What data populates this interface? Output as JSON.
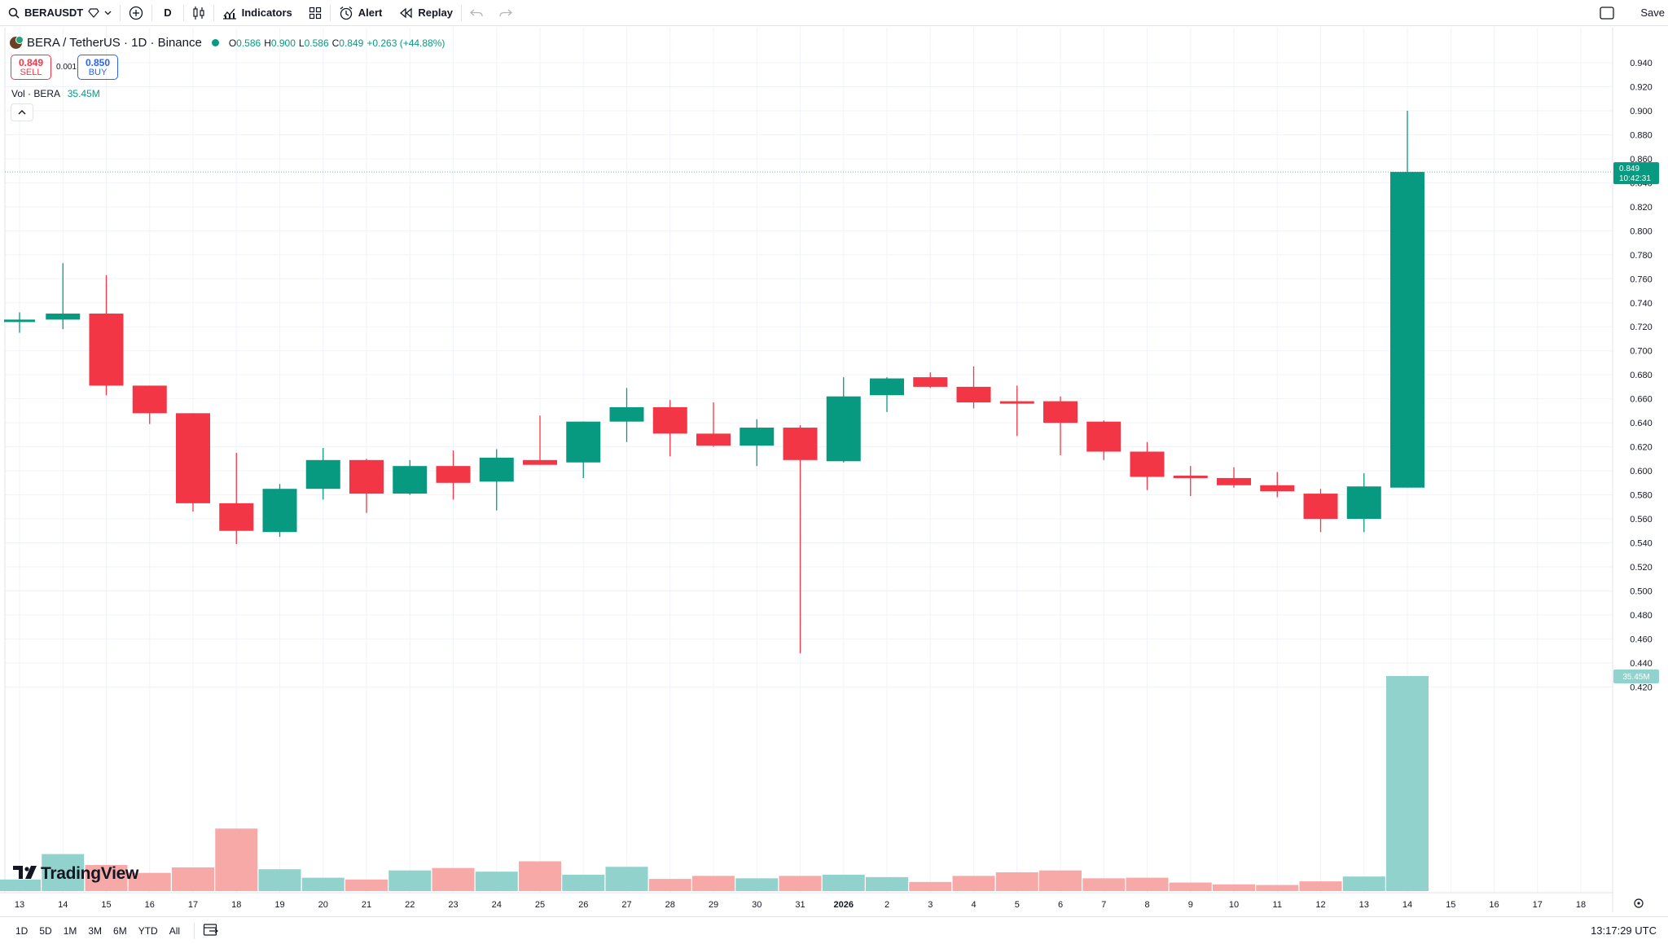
{
  "toolbar": {
    "symbol": "BERAUSDT",
    "interval": "D",
    "indicators_label": "Indicators",
    "alert_label": "Alert",
    "replay_label": "Replay",
    "save_label": "Save"
  },
  "legend": {
    "pair": "BERA / TetherUS · 1D · Binance",
    "o_label": "O",
    "o_value": "0.586",
    "h_label": "H",
    "h_value": "0.900",
    "l_label": "L",
    "l_value": "0.586",
    "c_label": "C",
    "c_value": "0.849",
    "change": "+0.263 (+44.88%)"
  },
  "trade": {
    "sell_price": "0.849",
    "sell_label": "SELL",
    "spread": "0.001",
    "buy_price": "0.850",
    "buy_label": "BUY"
  },
  "volume_legend": {
    "label": "Vol · BERA",
    "value": "35.45M"
  },
  "price_tag": {
    "price": "0.849",
    "countdown": "10:42:31"
  },
  "volume_tag": "35.45M",
  "brand": "TradingView",
  "bottom": {
    "ranges": [
      "1D",
      "5D",
      "1M",
      "3M",
      "6M",
      "YTD",
      "All"
    ],
    "utc_time": "13:17:29 UTC"
  },
  "colors": {
    "up": "#089981",
    "down": "#f23645",
    "vol_up": "#92d2cc",
    "vol_down": "#f7a9a7",
    "grid": "#f0f3fa"
  },
  "chart_data": {
    "type": "candlestick",
    "y_ticks": [
      "0.420",
      "0.440",
      "0.460",
      "0.480",
      "0.500",
      "0.520",
      "0.540",
      "0.560",
      "0.580",
      "0.600",
      "0.620",
      "0.640",
      "0.660",
      "0.680",
      "0.700",
      "0.720",
      "0.740",
      "0.760",
      "0.780",
      "0.800",
      "0.820",
      "0.840",
      "0.860",
      "0.880",
      "0.900",
      "0.920",
      "0.940"
    ],
    "x_labels": [
      "13",
      "14",
      "15",
      "16",
      "17",
      "18",
      "19",
      "20",
      "21",
      "22",
      "23",
      "24",
      "25",
      "26",
      "27",
      "28",
      "29",
      "30",
      "31",
      "2026",
      "2",
      "3",
      "4",
      "5",
      "6",
      "7",
      "8",
      "9",
      "10",
      "11",
      "12",
      "13",
      "14",
      "15",
      "16",
      "17",
      "18"
    ],
    "ylim": [
      0.406,
      0.95
    ],
    "candles": [
      {
        "x": "13",
        "o": 0.725,
        "h": 0.732,
        "l": 0.715,
        "c": 0.726
      },
      {
        "x": "14",
        "o": 0.726,
        "h": 0.773,
        "l": 0.718,
        "c": 0.731
      },
      {
        "x": "15",
        "o": 0.731,
        "h": 0.763,
        "l": 0.663,
        "c": 0.671
      },
      {
        "x": "16",
        "o": 0.671,
        "h": 0.671,
        "l": 0.639,
        "c": 0.648
      },
      {
        "x": "17",
        "o": 0.648,
        "h": 0.648,
        "l": 0.566,
        "c": 0.573
      },
      {
        "x": "18",
        "o": 0.573,
        "h": 0.615,
        "l": 0.539,
        "c": 0.55
      },
      {
        "x": "19",
        "o": 0.549,
        "h": 0.589,
        "l": 0.545,
        "c": 0.585
      },
      {
        "x": "20",
        "o": 0.585,
        "h": 0.619,
        "l": 0.576,
        "c": 0.609
      },
      {
        "x": "21",
        "o": 0.609,
        "h": 0.61,
        "l": 0.565,
        "c": 0.581
      },
      {
        "x": "22",
        "o": 0.581,
        "h": 0.609,
        "l": 0.58,
        "c": 0.604
      },
      {
        "x": "23",
        "o": 0.604,
        "h": 0.617,
        "l": 0.576,
        "c": 0.59
      },
      {
        "x": "24",
        "o": 0.591,
        "h": 0.618,
        "l": 0.567,
        "c": 0.611
      },
      {
        "x": "25",
        "o": 0.609,
        "h": 0.646,
        "l": 0.605,
        "c": 0.605
      },
      {
        "x": "26",
        "o": 0.607,
        "h": 0.641,
        "l": 0.594,
        "c": 0.641
      },
      {
        "x": "27",
        "o": 0.641,
        "h": 0.669,
        "l": 0.624,
        "c": 0.653
      },
      {
        "x": "28",
        "o": 0.653,
        "h": 0.659,
        "l": 0.612,
        "c": 0.631
      },
      {
        "x": "29",
        "o": 0.631,
        "h": 0.657,
        "l": 0.62,
        "c": 0.621
      },
      {
        "x": "30",
        "o": 0.621,
        "h": 0.643,
        "l": 0.604,
        "c": 0.636
      },
      {
        "x": "31",
        "o": 0.636,
        "h": 0.638,
        "l": 0.448,
        "c": 0.609
      },
      {
        "x": "2026",
        "o": 0.608,
        "h": 0.678,
        "l": 0.607,
        "c": 0.662
      },
      {
        "x": "2",
        "o": 0.663,
        "h": 0.678,
        "l": 0.649,
        "c": 0.677
      },
      {
        "x": "3",
        "o": 0.678,
        "h": 0.682,
        "l": 0.669,
        "c": 0.67
      },
      {
        "x": "4",
        "o": 0.67,
        "h": 0.687,
        "l": 0.652,
        "c": 0.657
      },
      {
        "x": "5",
        "o": 0.658,
        "h": 0.671,
        "l": 0.629,
        "c": 0.656
      },
      {
        "x": "6",
        "o": 0.658,
        "h": 0.662,
        "l": 0.613,
        "c": 0.64
      },
      {
        "x": "7",
        "o": 0.641,
        "h": 0.642,
        "l": 0.609,
        "c": 0.616
      },
      {
        "x": "8",
        "o": 0.616,
        "h": 0.624,
        "l": 0.584,
        "c": 0.595
      },
      {
        "x": "9",
        "o": 0.596,
        "h": 0.604,
        "l": 0.579,
        "c": 0.594
      },
      {
        "x": "10",
        "o": 0.594,
        "h": 0.603,
        "l": 0.586,
        "c": 0.588
      },
      {
        "x": "11",
        "o": 0.588,
        "h": 0.599,
        "l": 0.578,
        "c": 0.583
      },
      {
        "x": "12",
        "o": 0.581,
        "h": 0.585,
        "l": 0.549,
        "c": 0.56
      },
      {
        "x": "13",
        "o": 0.56,
        "h": 0.598,
        "l": 0.549,
        "c": 0.587
      },
      {
        "x": "14",
        "o": 0.586,
        "h": 0.9,
        "l": 0.586,
        "c": 0.849
      }
    ],
    "volume_millions": [
      1.9,
      6.1,
      4.3,
      3.0,
      3.9,
      10.3,
      3.6,
      2.2,
      1.9,
      3.4,
      3.8,
      3.2,
      4.9,
      2.7,
      4.0,
      2.0,
      2.5,
      2.1,
      2.5,
      2.7,
      2.3,
      1.5,
      2.5,
      3.1,
      3.4,
      2.1,
      2.2,
      1.4,
      1.1,
      1.0,
      1.6,
      2.4,
      35.45
    ],
    "current_price": 0.849,
    "volume_max_millions": 35.45,
    "grid": true
  }
}
